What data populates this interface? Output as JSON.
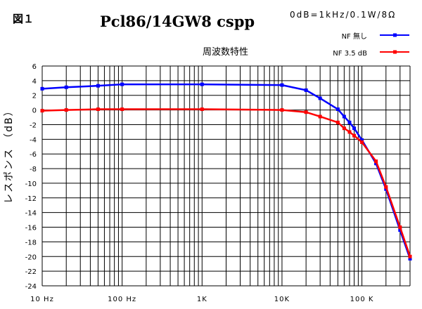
{
  "figure_label": "図１",
  "title": "Pcl86/14GW8 cspp",
  "condition": "0dB=1kHz/0.1W/8Ω",
  "chart_data": {
    "type": "line",
    "title": "周波数特性",
    "xlabel": "",
    "ylabel": "レスポンス （dB）",
    "xscale": "log",
    "xlim": [
      10,
      400000
    ],
    "ylim": [
      -24,
      6
    ],
    "yticks": [
      6,
      4,
      2,
      0,
      -2,
      -4,
      -6,
      -8,
      -10,
      -12,
      -14,
      -16,
      -18,
      -20,
      -22,
      -24
    ],
    "xticks": [
      {
        "value": 10,
        "label": "10 Hz"
      },
      {
        "value": 100,
        "label": "100 Hz"
      },
      {
        "value": 1000,
        "label": "1K"
      },
      {
        "value": 10000,
        "label": "10K"
      },
      {
        "value": 100000,
        "label": "100 K"
      }
    ],
    "grid": true,
    "legend": "top-right",
    "x": [
      10,
      20,
      50,
      100,
      1000,
      10000,
      20000,
      30000,
      50000,
      60000,
      70000,
      80000,
      100000,
      150000,
      200000,
      300000,
      400000
    ],
    "series": [
      {
        "name": "NF 無し",
        "color": "#0000ff",
        "values": [
          2.9,
          3.1,
          3.3,
          3.5,
          3.5,
          3.4,
          2.7,
          1.6,
          0.1,
          -0.9,
          -1.7,
          -2.5,
          -4.1,
          -7.3,
          -10.8,
          -16.4,
          -20.3
        ]
      },
      {
        "name": "NF 3.5 dB",
        "color": "#ff0000",
        "values": [
          -0.1,
          0.0,
          0.1,
          0.1,
          0.1,
          0.0,
          -0.3,
          -0.9,
          -1.7,
          -2.5,
          -3.0,
          -3.5,
          -4.4,
          -7.0,
          -10.5,
          -16.0,
          -20.0
        ]
      }
    ]
  }
}
